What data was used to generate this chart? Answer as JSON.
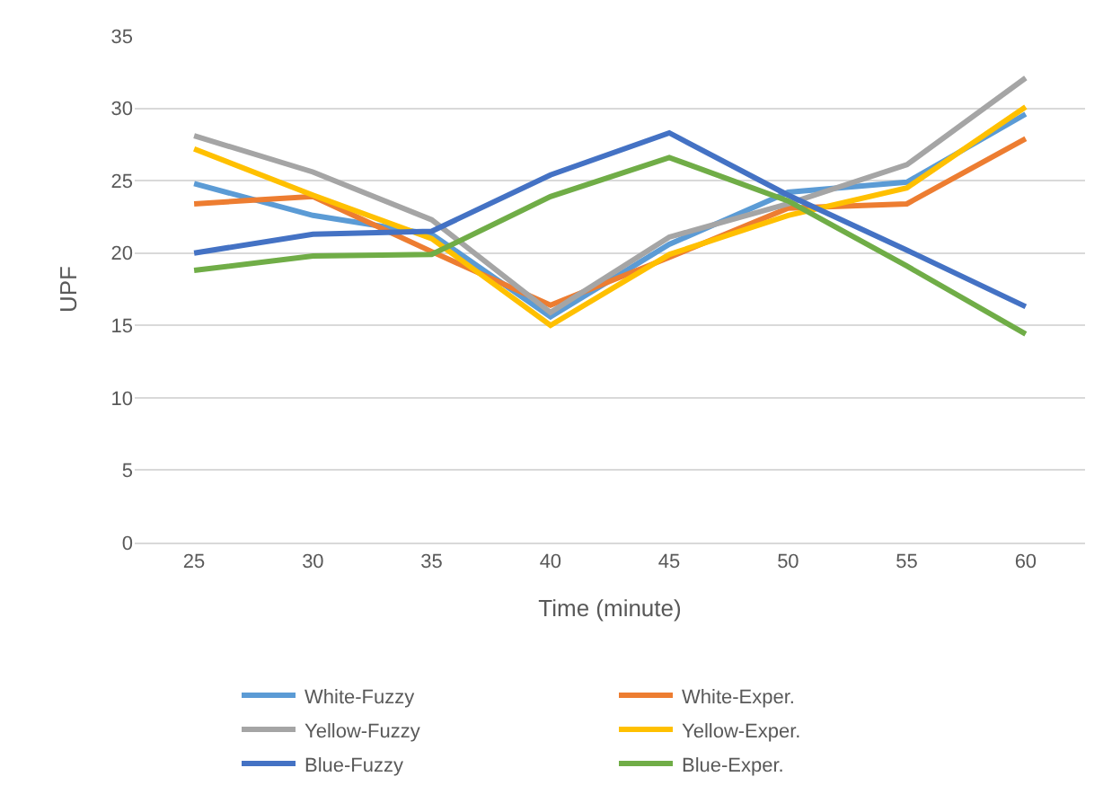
{
  "chart_data": {
    "type": "line",
    "xlabel": "Time (minute)",
    "ylabel": "UPF",
    "categories": [
      "25",
      "30",
      "35",
      "40",
      "45",
      "50",
      "55",
      "60"
    ],
    "ylim": [
      0,
      35
    ],
    "yticks": [
      0,
      5,
      10,
      15,
      20,
      25,
      30,
      35
    ],
    "grid": "y",
    "legend": "bottom",
    "marker": "none",
    "line_style": "solid",
    "series": [
      {
        "name": "White-Fuzzy",
        "color": "#5b9bd5",
        "values": [
          24.8,
          22.6,
          21.3,
          15.6,
          20.6,
          24.2,
          24.9,
          29.6
        ]
      },
      {
        "name": "White-Exper.",
        "color": "#ed7d31",
        "values": [
          23.4,
          23.9,
          20.1,
          16.4,
          19.7,
          23.1,
          23.4,
          27.9
        ]
      },
      {
        "name": "Yellow-Fuzzy",
        "color": "#a5a5a5",
        "values": [
          28.1,
          25.6,
          22.3,
          15.9,
          21.1,
          23.4,
          26.1,
          32.1
        ]
      },
      {
        "name": "Yellow-Exper.",
        "color": "#ffc000",
        "values": [
          27.2,
          24.0,
          21.0,
          15.0,
          19.9,
          22.6,
          24.5,
          30.1
        ]
      },
      {
        "name": "Blue-Fuzzy",
        "color": "#4472c4",
        "values": [
          20.0,
          21.3,
          21.5,
          25.4,
          28.3,
          24.0,
          20.2,
          16.3
        ]
      },
      {
        "name": "Blue-Exper.",
        "color": "#70ad47",
        "values": [
          18.8,
          19.8,
          19.9,
          23.9,
          26.6,
          23.6,
          19.1,
          14.4
        ]
      }
    ]
  }
}
